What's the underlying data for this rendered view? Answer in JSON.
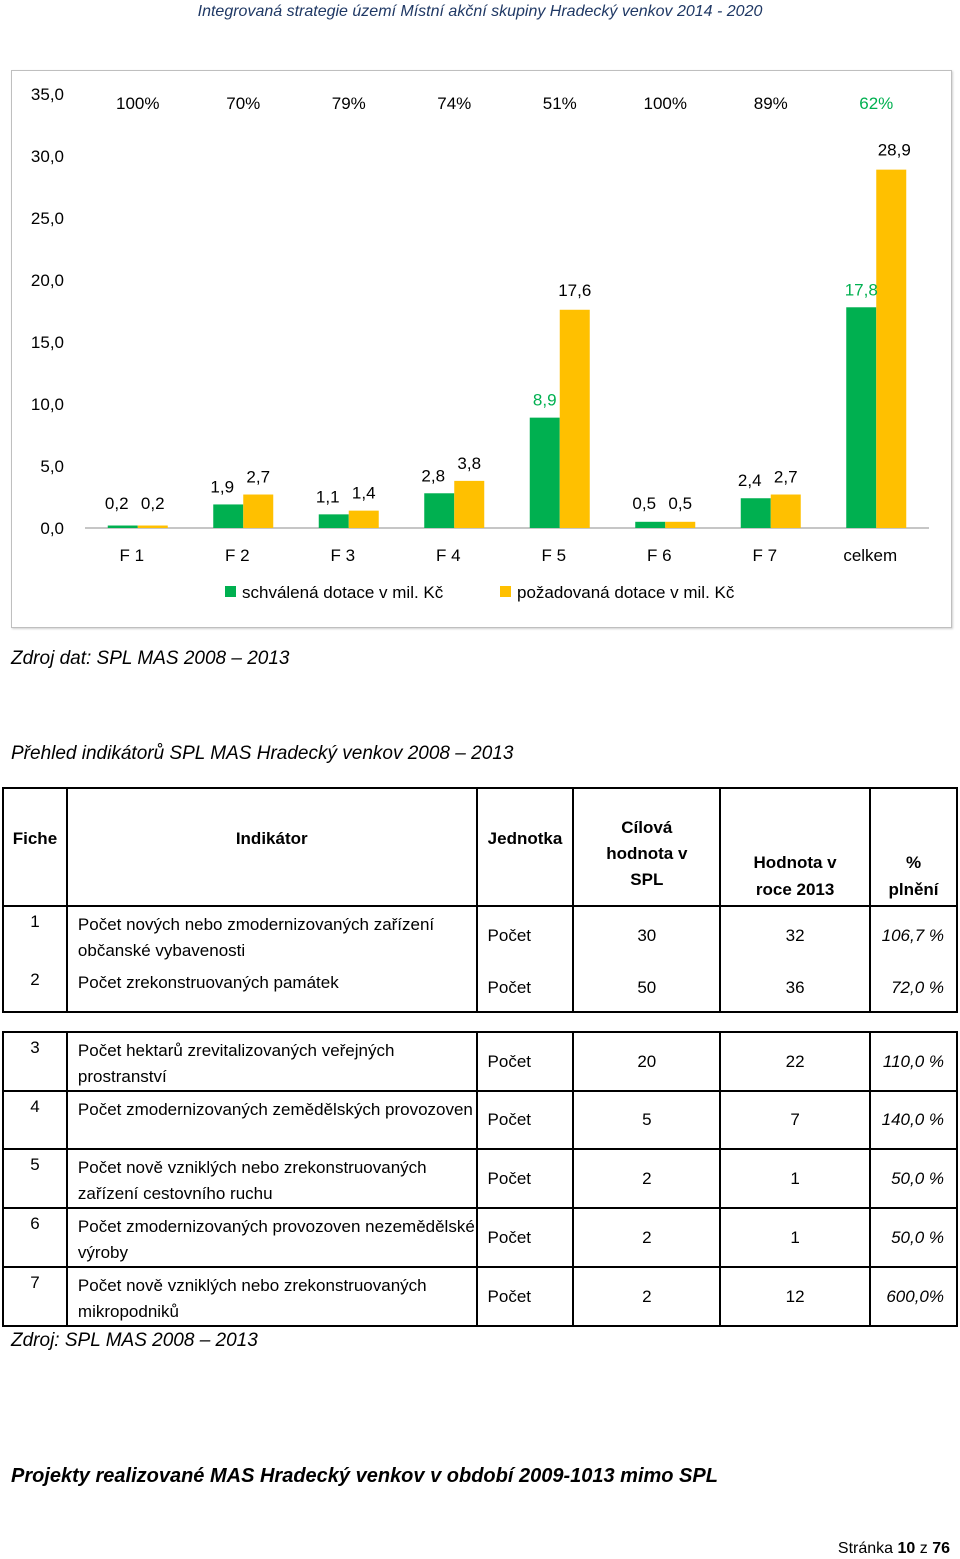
{
  "header": {
    "title": "Integrovaná strategie území Místní akční skupiny Hradecký venkov 2014 - 2020"
  },
  "chart_data": {
    "type": "bar",
    "categories": [
      "F 1",
      "F 2",
      "F 3",
      "F 4",
      "F 5",
      "F 6",
      "F 7",
      "celkem"
    ],
    "series": [
      {
        "name": "schválená dotace v mil. Kč",
        "values": [
          0.2,
          1.9,
          1.1,
          2.8,
          8.9,
          0.5,
          2.4,
          17.8
        ],
        "color": "#00b050"
      },
      {
        "name": "požadovaná dotace v mil. Kč",
        "values": [
          0.2,
          2.7,
          1.4,
          3.8,
          17.6,
          0.5,
          2.7,
          28.9
        ],
        "color": "#ffc000"
      }
    ],
    "value_labels": {
      "green": [
        "0,2",
        "1,9",
        "1,1",
        "2,8",
        "8,9",
        "0,5",
        "2,4",
        "17,8"
      ],
      "yellow": [
        "0,2",
        "2,7",
        "1,4",
        "3,8",
        "17,6",
        "0,5",
        "2,7",
        "28,9"
      ]
    },
    "percent_labels": [
      "100%",
      "70%",
      "79%",
      "74%",
      "51%",
      "100%",
      "89%",
      "62%"
    ],
    "y_ticks": [
      "0,0",
      "5,0",
      "10,0",
      "15,0",
      "20,0",
      "25,0",
      "30,0",
      "35,0"
    ],
    "ylim": [
      0,
      35
    ],
    "grid": false,
    "legend_position": "bottom",
    "title": "",
    "xlabel": "",
    "ylabel": ""
  },
  "chart_source": "Zdroj dat: SPL MAS 2008 – 2013",
  "table_title": "Přehled indikátorů SPL MAS Hradecký venkov 2008 – 2013",
  "table": {
    "headers": {
      "fiche": "Fiche",
      "indikator": "Indikátor",
      "jednotka": "Jednotka",
      "cilova": "Cílová hodnota v SPL",
      "hodnota": "Hodnota v roce 2013",
      "plneni": "% plnění"
    },
    "rows": [
      {
        "fiche": "1",
        "indikator": "Počet nových nebo zmodernizovaných zařízení občanské vybavenosti",
        "jednotka": "Počet",
        "cilova": "30",
        "hodnota": "32",
        "plneni": "106,7 %"
      },
      {
        "fiche": "2",
        "indikator": "Počet zrekonstruovaných památek",
        "jednotka": "Počet",
        "cilova": "50",
        "hodnota": "36",
        "plneni": "72,0 %"
      },
      {
        "fiche": "3",
        "indikator": "Počet hektarů zrevitalizovaných veřejných prostranství",
        "jednotka": "Počet",
        "cilova": "20",
        "hodnota": "22",
        "plneni": "110,0 %"
      },
      {
        "fiche": "4",
        "indikator": "Počet zmodernizovaných zemědělských provozoven",
        "jednotka": "Počet",
        "cilova": "5",
        "hodnota": "7",
        "plneni": "140,0 %"
      },
      {
        "fiche": "5",
        "indikator": "Počet nově vzniklých nebo zrekonstruovaných zařízení cestovního ruchu",
        "jednotka": "Počet",
        "cilova": "2",
        "hodnota": "1",
        "plneni": "50,0 %"
      },
      {
        "fiche": "6",
        "indikator": "Počet zmodernizovaných provozoven nezemědělské výroby",
        "jednotka": "Počet",
        "cilova": "2",
        "hodnota": "1",
        "plneni": "50,0 %"
      },
      {
        "fiche": "7",
        "indikator": "Počet nově vzniklých nebo zrekonstruovaných mikropodniků",
        "jednotka": "Počet",
        "cilova": "2",
        "hodnota": "12",
        "plneni": "600,0%"
      }
    ]
  },
  "table_source": "Zdroj: SPL MAS 2008 – 2013",
  "section_title": "Projekty realizované MAS Hradecký venkov v období 2009-1013 mimo SPL",
  "footer": {
    "prefix": "Stránka",
    "page": "10",
    "sep": "z",
    "total": "76"
  }
}
